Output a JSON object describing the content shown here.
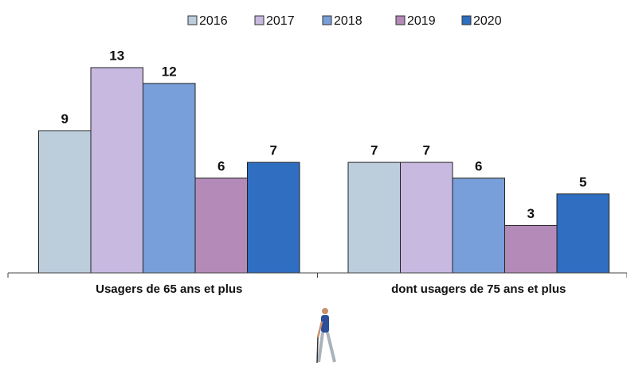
{
  "chart_data": {
    "type": "bar",
    "categories": [
      "Usagers de 65 ans et plus",
      "dont usagers de 75 ans et plus"
    ],
    "series": [
      {
        "name": "2016",
        "color": "#bccddc",
        "values": [
          9,
          7
        ]
      },
      {
        "name": "2017",
        "color": "#c8b9e1",
        "values": [
          13,
          7
        ]
      },
      {
        "name": "2018",
        "color": "#789fd9",
        "values": [
          12,
          6
        ]
      },
      {
        "name": "2019",
        "color": "#b38ab8",
        "values": [
          6,
          3
        ]
      },
      {
        "name": "2020",
        "color": "#2f6ec0",
        "values": [
          7,
          5
        ]
      }
    ],
    "legend": "top"
  }
}
